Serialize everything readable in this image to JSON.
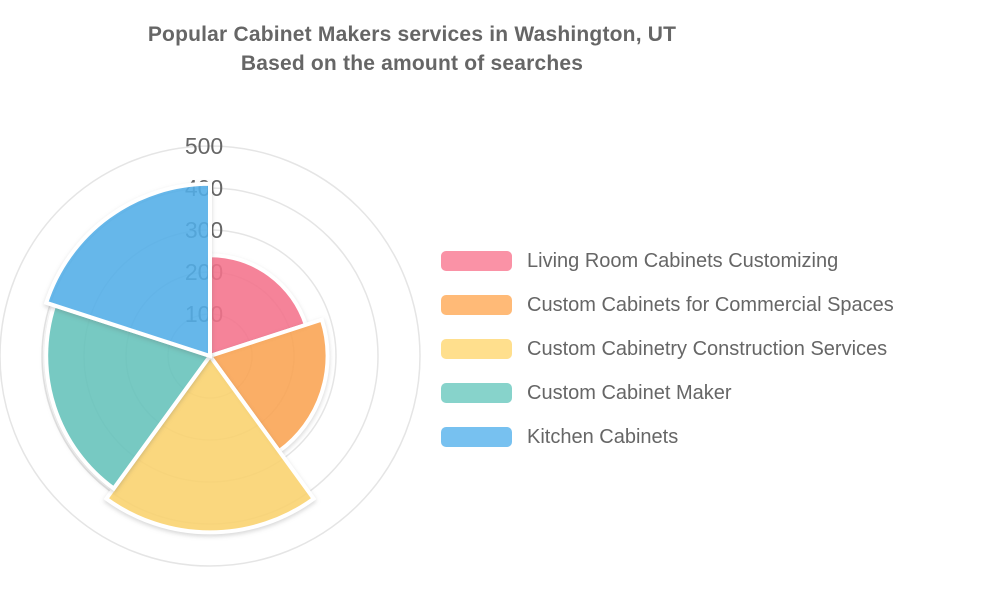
{
  "title": {
    "line1": "Popular Cabinet Makers services in Washington, UT",
    "line2": "Based on the amount of searches"
  },
  "chart_data": {
    "type": "polar_area",
    "title": "Popular Cabinet Makers services in Washington, UT — Based on the amount of searches",
    "categories": [
      "Living Room Cabinets Customizing",
      "Custom Cabinets for Commercial Spaces",
      "Custom Cabinetry Construction Services",
      "Custom Cabinet Maker",
      "Kitchen Cabinets"
    ],
    "values": [
      240,
      280,
      420,
      390,
      410
    ],
    "colors": [
      "#f9738d",
      "#ffa651",
      "#ffd66d",
      "#65c6bd",
      "#51b0ec"
    ],
    "axis": {
      "min": 0,
      "max": 500,
      "ticks": [
        100,
        200,
        300,
        400,
        500
      ],
      "tick_labels": [
        "100",
        "200",
        "300",
        "400",
        "500"
      ]
    },
    "start_angle_deg": 0,
    "direction": "clockwise",
    "grid": true,
    "grid_color": "#e5e5e5",
    "tick_label_color": "#666666",
    "legend_position": "right"
  },
  "legend": {
    "items": [
      {
        "label": "Living Room Cabinets Customizing",
        "color": "#f9738d"
      },
      {
        "label": "Custom Cabinets for Commercial Spaces",
        "color": "#ffa651"
      },
      {
        "label": "Custom Cabinetry Construction Services",
        "color": "#ffd66d"
      },
      {
        "label": "Custom Cabinet Maker",
        "color": "#65c6bd"
      },
      {
        "label": "Kitchen Cabinets",
        "color": "#51b0ec"
      }
    ]
  }
}
